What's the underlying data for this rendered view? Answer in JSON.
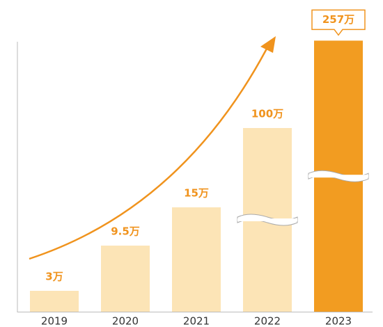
{
  "chart_data": {
    "type": "bar",
    "categories": [
      "2019",
      "2020",
      "2021",
      "2022",
      "2023"
    ],
    "values": [
      3,
      9.5,
      15,
      100,
      257
    ],
    "value_labels": [
      "3万",
      "9.5万",
      "15万",
      "100万",
      "257万"
    ],
    "colors": [
      "#fce4b6",
      "#fce4b6",
      "#fce4b6",
      "#fce4b6",
      "#f29c21"
    ],
    "label_color": "#f0931d",
    "trend_arrow": true
  }
}
